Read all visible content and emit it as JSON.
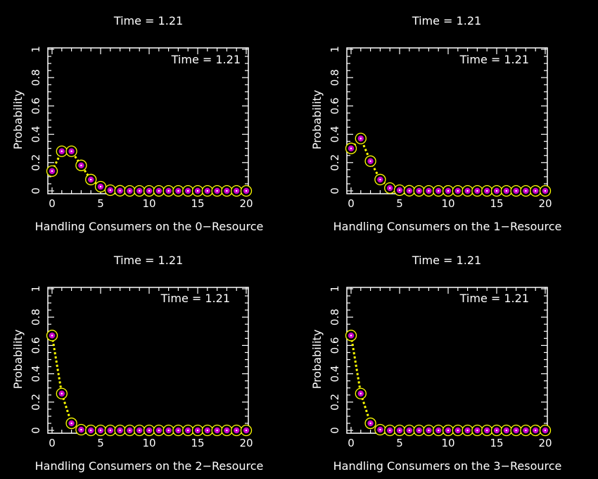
{
  "colors": {
    "background": "#000000",
    "axis": "#ffffff",
    "line": "#ffff00",
    "ring": "#ffff00",
    "marker": "#cc00cc",
    "dot": "#ffffff"
  },
  "chart_data": [
    {
      "type": "line",
      "title": "Time =  1.21",
      "annotation": "Time =  1.21",
      "xlabel": "Handling Consumers on the 0−Resource",
      "ylabel": "Probability",
      "xlim": [
        0,
        20
      ],
      "ylim": [
        0,
        1
      ],
      "xticks": [
        "0",
        "5",
        "10",
        "15",
        "20"
      ],
      "yticks": [
        "0",
        "0.2",
        "0.4",
        "0.6",
        "0.8",
        "1"
      ],
      "x": [
        0,
        1,
        2,
        3,
        4,
        5,
        6,
        7,
        8,
        9,
        10,
        11,
        12,
        13,
        14,
        15,
        16,
        17,
        18,
        19,
        20
      ],
      "values": [
        0.14,
        0.28,
        0.28,
        0.18,
        0.08,
        0.03,
        0.005,
        0.001,
        0,
        0,
        0,
        0,
        0,
        0,
        0,
        0,
        0,
        0,
        0,
        0,
        0
      ]
    },
    {
      "type": "line",
      "title": "Time =  1.21",
      "annotation": "Time =  1.21",
      "xlabel": "Handling Consumers on the 1−Resource",
      "ylabel": "Probability",
      "xlim": [
        0,
        20
      ],
      "ylim": [
        0,
        1
      ],
      "xticks": [
        "0",
        "5",
        "10",
        "15",
        "20"
      ],
      "yticks": [
        "0",
        "0.2",
        "0.4",
        "0.6",
        "0.8",
        "1"
      ],
      "x": [
        0,
        1,
        2,
        3,
        4,
        5,
        6,
        7,
        8,
        9,
        10,
        11,
        12,
        13,
        14,
        15,
        16,
        17,
        18,
        19,
        20
      ],
      "values": [
        0.3,
        0.37,
        0.21,
        0.08,
        0.02,
        0.005,
        0.001,
        0,
        0,
        0,
        0,
        0,
        0,
        0,
        0,
        0,
        0,
        0,
        0,
        0,
        0
      ]
    },
    {
      "type": "line",
      "title": "Time =  1.21",
      "annotation": "Time =  1.21",
      "xlabel": "Handling Consumers on the 2−Resource",
      "ylabel": "Probability",
      "xlim": [
        0,
        20
      ],
      "ylim": [
        0,
        1
      ],
      "xticks": [
        "0",
        "5",
        "10",
        "15",
        "20"
      ],
      "yticks": [
        "0",
        "0.2",
        "0.4",
        "0.6",
        "0.8",
        "1"
      ],
      "x": [
        0,
        1,
        2,
        3,
        4,
        5,
        6,
        7,
        8,
        9,
        10,
        11,
        12,
        13,
        14,
        15,
        16,
        17,
        18,
        19,
        20
      ],
      "values": [
        0.67,
        0.26,
        0.05,
        0.005,
        0,
        0,
        0,
        0,
        0,
        0,
        0,
        0,
        0,
        0,
        0,
        0,
        0,
        0,
        0,
        0,
        0
      ]
    },
    {
      "type": "line",
      "title": "Time =  1.21",
      "annotation": "Time =  1.21",
      "xlabel": "Handling Consumers on the 3−Resource",
      "ylabel": "Probability",
      "xlim": [
        0,
        20
      ],
      "ylim": [
        0,
        1
      ],
      "xticks": [
        "0",
        "5",
        "10",
        "15",
        "20"
      ],
      "yticks": [
        "0",
        "0.2",
        "0.4",
        "0.6",
        "0.8",
        "1"
      ],
      "x": [
        0,
        1,
        2,
        3,
        4,
        5,
        6,
        7,
        8,
        9,
        10,
        11,
        12,
        13,
        14,
        15,
        16,
        17,
        18,
        19,
        20
      ],
      "values": [
        0.67,
        0.26,
        0.05,
        0.005,
        0,
        0,
        0,
        0,
        0,
        0,
        0,
        0,
        0,
        0,
        0,
        0,
        0,
        0,
        0,
        0,
        0
      ]
    }
  ]
}
